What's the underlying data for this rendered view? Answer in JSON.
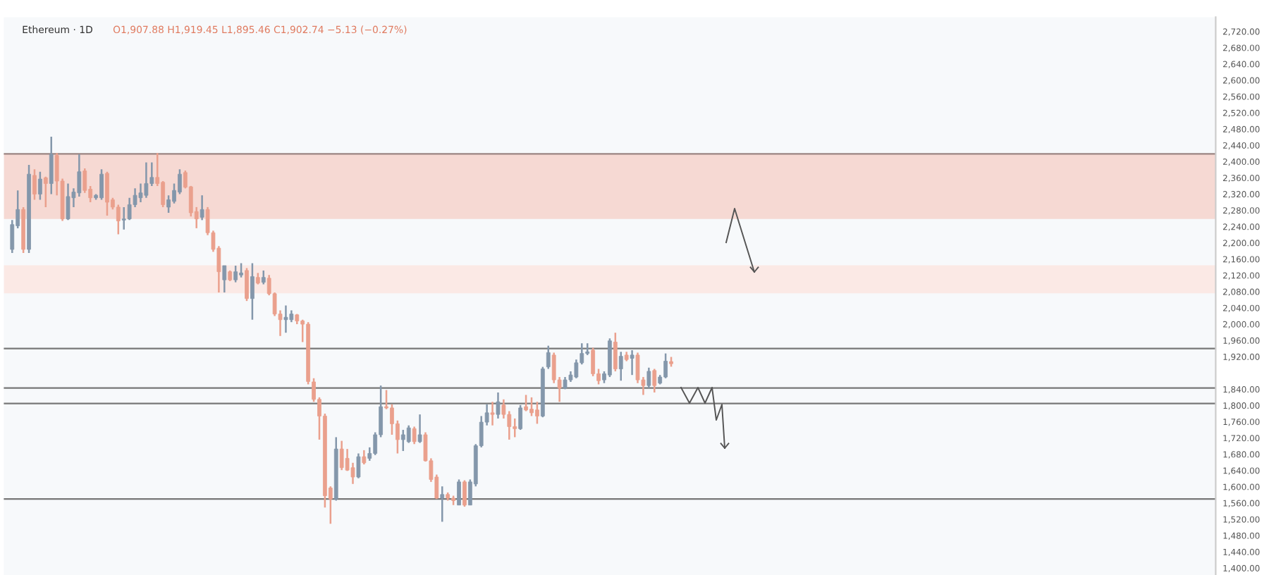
{
  "chart_data": {
    "type": "candlestick",
    "title": "Ethereum · 1D",
    "subtitle": "O1,907.88 H1,919.45 L1,895.46 C1,902.74 −5.13 (−0.27%)",
    "categories": [
      null,
      null,
      null,
      null,
      null,
      null,
      null,
      null,
      null,
      null,
      null,
      null,
      null,
      null,
      null,
      null,
      null,
      null,
      null,
      null,
      null,
      null,
      null,
      null,
      null,
      null,
      null,
      null,
      null,
      null,
      null,
      null,
      null,
      null,
      null,
      null,
      null,
      null,
      null,
      null,
      null,
      null,
      null,
      null,
      null,
      null,
      null,
      null,
      null,
      null,
      null,
      null,
      null,
      null,
      null,
      null,
      null,
      null,
      null,
      null,
      null,
      null,
      null,
      null,
      null,
      null,
      null,
      null,
      null,
      null,
      null,
      null,
      null,
      null,
      null,
      null,
      null,
      null,
      null,
      null,
      null,
      null,
      null,
      null,
      null,
      null,
      null,
      null,
      null,
      null,
      null,
      null,
      null,
      null,
      null,
      null,
      null,
      null,
      null,
      null,
      null,
      null,
      null,
      null,
      null,
      null,
      null,
      null,
      null,
      null,
      null,
      null,
      null,
      null,
      null,
      null,
      null,
      null,
      null,
      null,
      null,
      null,
      null,
      null,
      null,
      null,
      null,
      null,
      null,
      null,
      null,
      null,
      null,
      null,
      null,
      null,
      null,
      null,
      null,
      null,
      null,
      null,
      null,
      null,
      null,
      null,
      null,
      null,
      null,
      null,
      null,
      null,
      null,
      null,
      null,
      null,
      null,
      null,
      null,
      null,
      null,
      null,
      null,
      null,
      null,
      null,
      null,
      null,
      null,
      null,
      null,
      null,
      null,
      null,
      null,
      null,
      null,
      null,
      null,
      null,
      null,
      null,
      null,
      null,
      null,
      null,
      null,
      null,
      null,
      null,
      null,
      null,
      null,
      null,
      null,
      null,
      null,
      null,
      null,
      null,
      null,
      null,
      null,
      null,
      null,
      null,
      null,
      null,
      null,
      null,
      null,
      null,
      null,
      null,
      null,
      null,
      null
    ],
    "ohlc": [
      null,
      [
        2184,
        2256,
        2175,
        2245
      ],
      [
        2242,
        2329,
        2236,
        2282
      ],
      [
        2282,
        2288,
        2175,
        2184
      ],
      [
        2184,
        2392,
        2175,
        2369
      ],
      [
        2366,
        2381,
        2306,
        2320
      ],
      [
        2320,
        2375,
        2306,
        2357
      ],
      [
        2360,
        2363,
        2288,
        2346
      ],
      [
        2346,
        2461,
        2320,
        2418
      ],
      [
        2415,
        2421,
        2317,
        2352
      ],
      [
        2352,
        2358,
        2254,
        2259
      ],
      [
        2259,
        2346,
        2256,
        2314
      ],
      [
        2311,
        2334,
        2288,
        2325
      ],
      [
        2323,
        2418,
        2314,
        2375
      ],
      [
        2377,
        2383,
        2323,
        2329
      ],
      [
        2332,
        2340,
        2300,
        2311
      ],
      [
        2311,
        2320,
        2306,
        2317
      ],
      [
        2311,
        2381,
        2306,
        2369
      ],
      [
        2371,
        2375,
        2267,
        2300
      ],
      [
        2306,
        2311,
        2282,
        2288
      ],
      [
        2288,
        2294,
        2221,
        2254
      ],
      [
        2256,
        2288,
        2233,
        2259
      ],
      [
        2259,
        2311,
        2256,
        2294
      ],
      [
        2294,
        2334,
        2288,
        2317
      ],
      [
        2311,
        2346,
        2300,
        2323
      ],
      [
        2317,
        2398,
        2311,
        2346
      ],
      [
        2346,
        2398,
        2340,
        2361
      ],
      [
        2361,
        2421,
        2340,
        2346
      ],
      [
        2349,
        2352,
        2288,
        2294
      ],
      [
        2288,
        2317,
        2274,
        2306
      ],
      [
        2302,
        2346,
        2297,
        2329
      ],
      [
        2325,
        2381,
        2320,
        2369
      ],
      [
        2373,
        2378,
        2334,
        2337
      ],
      [
        2338,
        2340,
        2265,
        2274
      ],
      [
        2277,
        2288,
        2236,
        2259
      ],
      [
        2263,
        2317,
        2256,
        2282
      ],
      [
        2282,
        2288,
        2219,
        2225
      ],
      [
        2225,
        2230,
        2178,
        2184
      ],
      [
        2187,
        2192,
        2078,
        2129
      ],
      [
        2109,
        2144,
        2078,
        2144
      ],
      [
        2129,
        2132,
        2106,
        2109
      ],
      [
        2109,
        2144,
        2103,
        2129
      ],
      [
        2121,
        2150,
        2115,
        2126
      ],
      [
        2132,
        2138,
        2057,
        2063
      ],
      [
        2063,
        2150,
        2011,
        2117
      ],
      [
        2115,
        2126,
        2098,
        2101
      ],
      [
        2103,
        2132,
        2098,
        2115
      ],
      [
        2113,
        2121,
        2071,
        2075
      ],
      [
        2075,
        2078,
        2020,
        2025
      ],
      [
        2025,
        2034,
        1971,
        2011
      ],
      [
        2011,
        2046,
        1979,
        2017
      ],
      [
        2011,
        2034,
        2005,
        2025
      ],
      [
        2023,
        2025,
        2000,
        2008
      ],
      [
        2008,
        2011,
        1956,
        2000
      ],
      [
        2000,
        2005,
        1852,
        1859
      ],
      [
        1858,
        1867,
        1809,
        1815
      ],
      [
        1815,
        1820,
        1716,
        1774
      ],
      [
        1774,
        1780,
        1549,
        1578
      ],
      [
        1597,
        1601,
        1509,
        1570
      ],
      [
        1570,
        1722,
        1566,
        1693
      ],
      [
        1693,
        1713,
        1641,
        1647
      ],
      [
        1670,
        1693,
        1639,
        1641
      ],
      [
        1647,
        1659,
        1607,
        1624
      ],
      [
        1624,
        1682,
        1621,
        1674
      ],
      [
        1674,
        1690,
        1655,
        1659
      ],
      [
        1670,
        1697,
        1664,
        1682
      ],
      [
        1682,
        1734,
        1678,
        1728
      ],
      [
        1728,
        1849,
        1722,
        1797
      ],
      [
        1797,
        1838,
        1791,
        1794
      ],
      [
        1794,
        1803,
        1728,
        1755
      ],
      [
        1755,
        1763,
        1682,
        1716
      ],
      [
        1716,
        1740,
        1688,
        1728
      ],
      [
        1711,
        1751,
        1708,
        1745
      ],
      [
        1743,
        1748,
        1705,
        1711
      ],
      [
        1711,
        1778,
        1708,
        1728
      ],
      [
        1728,
        1734,
        1662,
        1664
      ],
      [
        1664,
        1670,
        1612,
        1618
      ],
      [
        1624,
        1630,
        1570,
        1572
      ],
      [
        1572,
        1601,
        1514,
        1581
      ],
      [
        1581,
        1586,
        1566,
        1572
      ],
      [
        1572,
        1578,
        1555,
        1566
      ],
      [
        1555,
        1618,
        1555,
        1612
      ],
      [
        1612,
        1616,
        1551,
        1555
      ],
      [
        1555,
        1618,
        1555,
        1612
      ],
      [
        1607,
        1705,
        1601,
        1701
      ],
      [
        1701,
        1774,
        1697,
        1759
      ],
      [
        1759,
        1803,
        1751,
        1782
      ],
      [
        1782,
        1809,
        1751,
        1778
      ],
      [
        1778,
        1832,
        1768,
        1809
      ],
      [
        1801,
        1815,
        1768,
        1778
      ],
      [
        1778,
        1786,
        1716,
        1748
      ],
      [
        1748,
        1768,
        1722,
        1743
      ],
      [
        1743,
        1801,
        1740,
        1794
      ],
      [
        1797,
        1826,
        1786,
        1789
      ],
      [
        1791,
        1820,
        1774,
        1782
      ],
      [
        1789,
        1809,
        1755,
        1774
      ],
      [
        1774,
        1895,
        1771,
        1890
      ],
      [
        1895,
        1947,
        1890,
        1930
      ],
      [
        1924,
        1930,
        1855,
        1863
      ],
      [
        1863,
        1870,
        1809,
        1843
      ],
      [
        1843,
        1870,
        1840,
        1863
      ],
      [
        1863,
        1884,
        1858,
        1875
      ],
      [
        1870,
        1913,
        1867,
        1905
      ],
      [
        1905,
        1953,
        1901,
        1928
      ],
      [
        1928,
        1953,
        1924,
        1932
      ],
      [
        1936,
        1942,
        1872,
        1878
      ],
      [
        1878,
        1890,
        1852,
        1861
      ],
      [
        1863,
        1884,
        1855,
        1878
      ],
      [
        1875,
        1965,
        1870,
        1959
      ],
      [
        1956,
        1979,
        1884,
        1890
      ],
      [
        1890,
        1932,
        1861,
        1921
      ],
      [
        1924,
        1932,
        1909,
        1913
      ],
      [
        1916,
        1936,
        1875,
        1924
      ],
      [
        1924,
        1930,
        1855,
        1863
      ],
      [
        1863,
        1870,
        1826,
        1849
      ],
      [
        1849,
        1893,
        1843,
        1884
      ],
      [
        1886,
        1890,
        1832,
        1849
      ],
      [
        1855,
        1875,
        1852,
        1870
      ],
      [
        1870,
        1928,
        1867,
        1909
      ],
      [
        1907.88,
        1919.45,
        1895.46,
        1902.74
      ],
      null,
      null,
      null,
      null,
      null,
      null,
      null,
      null,
      null,
      null,
      null,
      null,
      null,
      null,
      null,
      null,
      null,
      null,
      null,
      null,
      null,
      null,
      null,
      null,
      null,
      null,
      null,
      null,
      null,
      null,
      null,
      null,
      null,
      null,
      null,
      null,
      null,
      null,
      null,
      null,
      null,
      null,
      null,
      null,
      null,
      null,
      null,
      null,
      null,
      null,
      null,
      null,
      null,
      null,
      null,
      null,
      null,
      null,
      null,
      null,
      null,
      null,
      null,
      null,
      null,
      null,
      null,
      null,
      null,
      null,
      null,
      null,
      null,
      null,
      null,
      null,
      null,
      null,
      null,
      null,
      null,
      null,
      null,
      null,
      null,
      null,
      null,
      null,
      null,
      null,
      null,
      null,
      null,
      null,
      null,
      null,
      null
    ],
    "colors": [
      null,
      "#8497ab",
      "#8497ab",
      "#eaa08d",
      "#8497ab",
      "#eaa08d",
      "#8497ab",
      "#eaa08d",
      "#8497ab",
      "#eaa08d",
      "#eaa08d",
      "#8497ab",
      "#8497ab",
      "#8497ab",
      "#eaa08d",
      "#eaa08d",
      "#8497ab",
      "#8497ab",
      "#eaa08d",
      "#eaa08d",
      "#eaa08d",
      "#8497ab",
      "#8497ab",
      "#8497ab",
      "#8497ab",
      "#8497ab",
      "#8497ab",
      "#eaa08d",
      "#eaa08d",
      "#8497ab",
      "#8497ab",
      "#8497ab",
      "#eaa08d",
      "#eaa08d",
      "#eaa08d",
      "#8497ab",
      "#eaa08d",
      "#eaa08d",
      "#eaa08d",
      "#8497ab",
      "#eaa08d",
      "#8497ab",
      "#8497ab",
      "#eaa08d",
      "#8497ab",
      "#eaa08d",
      "#8497ab",
      "#eaa08d",
      "#eaa08d",
      "#eaa08d",
      "#8497ab",
      "#8497ab",
      "#eaa08d",
      "#eaa08d",
      "#eaa08d",
      "#eaa08d",
      "#eaa08d",
      "#eaa08d",
      "#eaa08d",
      "#8497ab",
      "#eaa08d",
      "#eaa08d",
      "#eaa08d",
      "#8497ab",
      "#eaa08d",
      "#8497ab",
      "#8497ab",
      "#8497ab",
      "#eaa08d",
      "#eaa08d",
      "#eaa08d",
      "#8497ab",
      "#8497ab",
      "#eaa08d",
      "#8497ab",
      "#eaa08d",
      "#eaa08d",
      "#eaa08d",
      "#8497ab",
      "#eaa08d",
      "#eaa08d",
      "#8497ab",
      "#eaa08d",
      "#8497ab",
      "#8497ab",
      "#8497ab",
      "#8497ab",
      "#eaa08d",
      "#8497ab",
      "#eaa08d",
      "#eaa08d",
      "#eaa08d",
      "#8497ab",
      "#eaa08d",
      "#eaa08d",
      "#eaa08d",
      "#8497ab",
      "#8497ab",
      "#eaa08d",
      "#eaa08d",
      "#8497ab",
      "#8497ab",
      "#8497ab",
      "#8497ab",
      "#8497ab",
      "#eaa08d",
      "#eaa08d",
      "#8497ab",
      "#8497ab",
      "#eaa08d",
      "#8497ab",
      "#eaa08d",
      "#8497ab",
      "#eaa08d",
      "#eaa08d",
      "#8497ab",
      "#eaa08d",
      "#8497ab",
      "#8497ab",
      "#eaa08d",
      null,
      null,
      null,
      null,
      null,
      null,
      null,
      null,
      null,
      null,
      null,
      null,
      null,
      null,
      null,
      null,
      null,
      null,
      null,
      null,
      null,
      null,
      null,
      null,
      null,
      null,
      null,
      null,
      null,
      null,
      null,
      null,
      null,
      null,
      null,
      null,
      null,
      null,
      null,
      null,
      null,
      null,
      null,
      null,
      null,
      null,
      null,
      null,
      null,
      null,
      null,
      null,
      null,
      null,
      null,
      null,
      null,
      null,
      null,
      null,
      null,
      null,
      null,
      null,
      null,
      null,
      null,
      null,
      null,
      null,
      null,
      null,
      null,
      null,
      null,
      null,
      null,
      null,
      null,
      null,
      null,
      null,
      null,
      null,
      null,
      null,
      null,
      null,
      null,
      null,
      null,
      null,
      null,
      null,
      null,
      null,
      null
    ],
    "ylim": [
      1383,
      2755
    ],
    "yticks": [
      {
        "value": 1400,
        "label": "1,400.00"
      },
      {
        "value": 1440,
        "label": "1,440.00"
      },
      {
        "value": 1480,
        "label": "1,480.00"
      },
      {
        "value": 1520,
        "label": "1,520.00"
      },
      {
        "value": 1560,
        "label": "1,560.00"
      },
      {
        "value": 1600,
        "label": "1,600.00"
      },
      {
        "value": 1640,
        "label": "1,640.00"
      },
      {
        "value": 1680,
        "label": "1,680.00"
      },
      {
        "value": 1720,
        "label": "1,720.00"
      },
      {
        "value": 1760,
        "label": "1,760.00"
      },
      {
        "value": 1800,
        "label": "1,800.00"
      },
      {
        "value": 1840,
        "label": "1,840.00"
      },
      {
        "value": 1920,
        "label": "1,920.00"
      },
      {
        "value": 1960,
        "label": "1,960.00"
      },
      {
        "value": 2000,
        "label": "2,000.00"
      },
      {
        "value": 2040,
        "label": "2,040.00"
      },
      {
        "value": 2080,
        "label": "2,080.00"
      },
      {
        "value": 2120,
        "label": "2,120.00"
      },
      {
        "value": 2160,
        "label": "2,160.00"
      },
      {
        "value": 2200,
        "label": "2,200.00"
      },
      {
        "value": 2240,
        "label": "2,240.00"
      },
      {
        "value": 2280,
        "label": "2,280.00"
      },
      {
        "value": 2320,
        "label": "2,320.00"
      },
      {
        "value": 2360,
        "label": "2,360.00"
      },
      {
        "value": 2400,
        "label": "2,400.00"
      },
      {
        "value": 2440,
        "label": "2,440.00"
      },
      {
        "value": 2480,
        "label": "2,480.00"
      },
      {
        "value": 2520,
        "label": "2,520.00"
      },
      {
        "value": 2560,
        "label": "2,560.00"
      },
      {
        "value": 2600,
        "label": "2,600.00"
      },
      {
        "value": 2640,
        "label": "2,640.00"
      },
      {
        "value": 2680,
        "label": "2,680.00"
      },
      {
        "value": 2720,
        "label": "2,720.00"
      }
    ],
    "tick_labels": "y",
    "bands": [
      {
        "axis": "y",
        "from": 2259,
        "to": 2419,
        "color": "#f6d9d3"
      },
      {
        "axis": "y",
        "from": 2076,
        "to": 2145,
        "color": "#fbe9e5"
      }
    ],
    "ref_lines": [
      {
        "axis": "y",
        "value": 2419,
        "color": "#9a8582",
        "line_style": "solid"
      },
      {
        "axis": "y",
        "value": 1940,
        "color": "#777777",
        "line_style": "solid"
      },
      {
        "axis": "y",
        "value": 1843,
        "color": "#777777",
        "line_style": "solid"
      },
      {
        "axis": "y",
        "value": 1805,
        "color": "#777777",
        "line_style": "solid"
      },
      {
        "axis": "y",
        "value": 1570,
        "color": "#777777",
        "line_style": "solid"
      }
    ],
    "grid": false,
    "legend": false
  }
}
